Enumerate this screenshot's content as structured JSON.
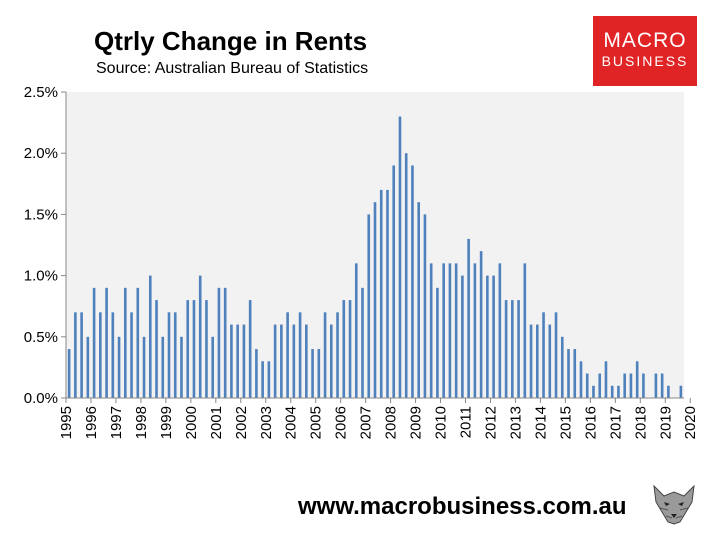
{
  "header": {
    "title": "Qtrly Change in Rents",
    "subtitle": "Source: Australian Bureau of Statistics"
  },
  "logo": {
    "line1": "MACRO",
    "line2": "BUSINESS"
  },
  "footer": {
    "url": "www.macrobusiness.com.au"
  },
  "colors": {
    "bar": "#4f81bd",
    "plot_bg": "#f2f2f2",
    "logo_bg": "#e02426"
  },
  "chart_data": {
    "type": "bar",
    "title": "Qtrly Change in Rents",
    "subtitle": "Source: Australian Bureau of Statistics",
    "xlabel": "",
    "ylabel": "",
    "ylim": [
      0,
      2.5
    ],
    "y_unit": "%",
    "y_ticks": [
      "0.0%",
      "0.5%",
      "1.0%",
      "1.5%",
      "2.0%",
      "2.5%"
    ],
    "x_ticks": [
      "1995",
      "1996",
      "1997",
      "1998",
      "1999",
      "2000",
      "2001",
      "2002",
      "2003",
      "2004",
      "2005",
      "2006",
      "2007",
      "2008",
      "2009",
      "2010",
      "2011",
      "2012",
      "2013",
      "2014",
      "2015",
      "2016",
      "2017",
      "2018",
      "2019",
      "2020"
    ],
    "grid": false,
    "start": "1995-Q1",
    "frequency": "quarterly",
    "values": [
      0.4,
      0.7,
      0.7,
      0.5,
      0.9,
      0.7,
      0.9,
      0.7,
      0.5,
      0.9,
      0.7,
      0.9,
      0.5,
      1.0,
      0.8,
      0.5,
      0.7,
      0.7,
      0.5,
      0.8,
      0.8,
      1.0,
      0.8,
      0.5,
      0.9,
      0.9,
      0.6,
      0.6,
      0.6,
      0.8,
      0.4,
      0.3,
      0.3,
      0.6,
      0.6,
      0.7,
      0.6,
      0.7,
      0.6,
      0.4,
      0.4,
      0.7,
      0.6,
      0.7,
      0.8,
      0.8,
      1.1,
      0.9,
      1.5,
      1.6,
      1.7,
      1.7,
      1.9,
      2.3,
      2.0,
      1.9,
      1.6,
      1.5,
      1.1,
      0.9,
      1.1,
      1.1,
      1.1,
      1.0,
      1.3,
      1.1,
      1.2,
      1.0,
      1.0,
      1.1,
      0.8,
      0.8,
      0.8,
      1.1,
      0.6,
      0.6,
      0.7,
      0.6,
      0.7,
      0.5,
      0.4,
      0.4,
      0.3,
      0.2,
      0.1,
      0.2,
      0.3,
      0.1,
      0.1,
      0.2,
      0.2,
      0.3,
      0.2,
      0.0,
      0.2,
      0.2,
      0.1,
      0.0,
      0.1
    ]
  }
}
